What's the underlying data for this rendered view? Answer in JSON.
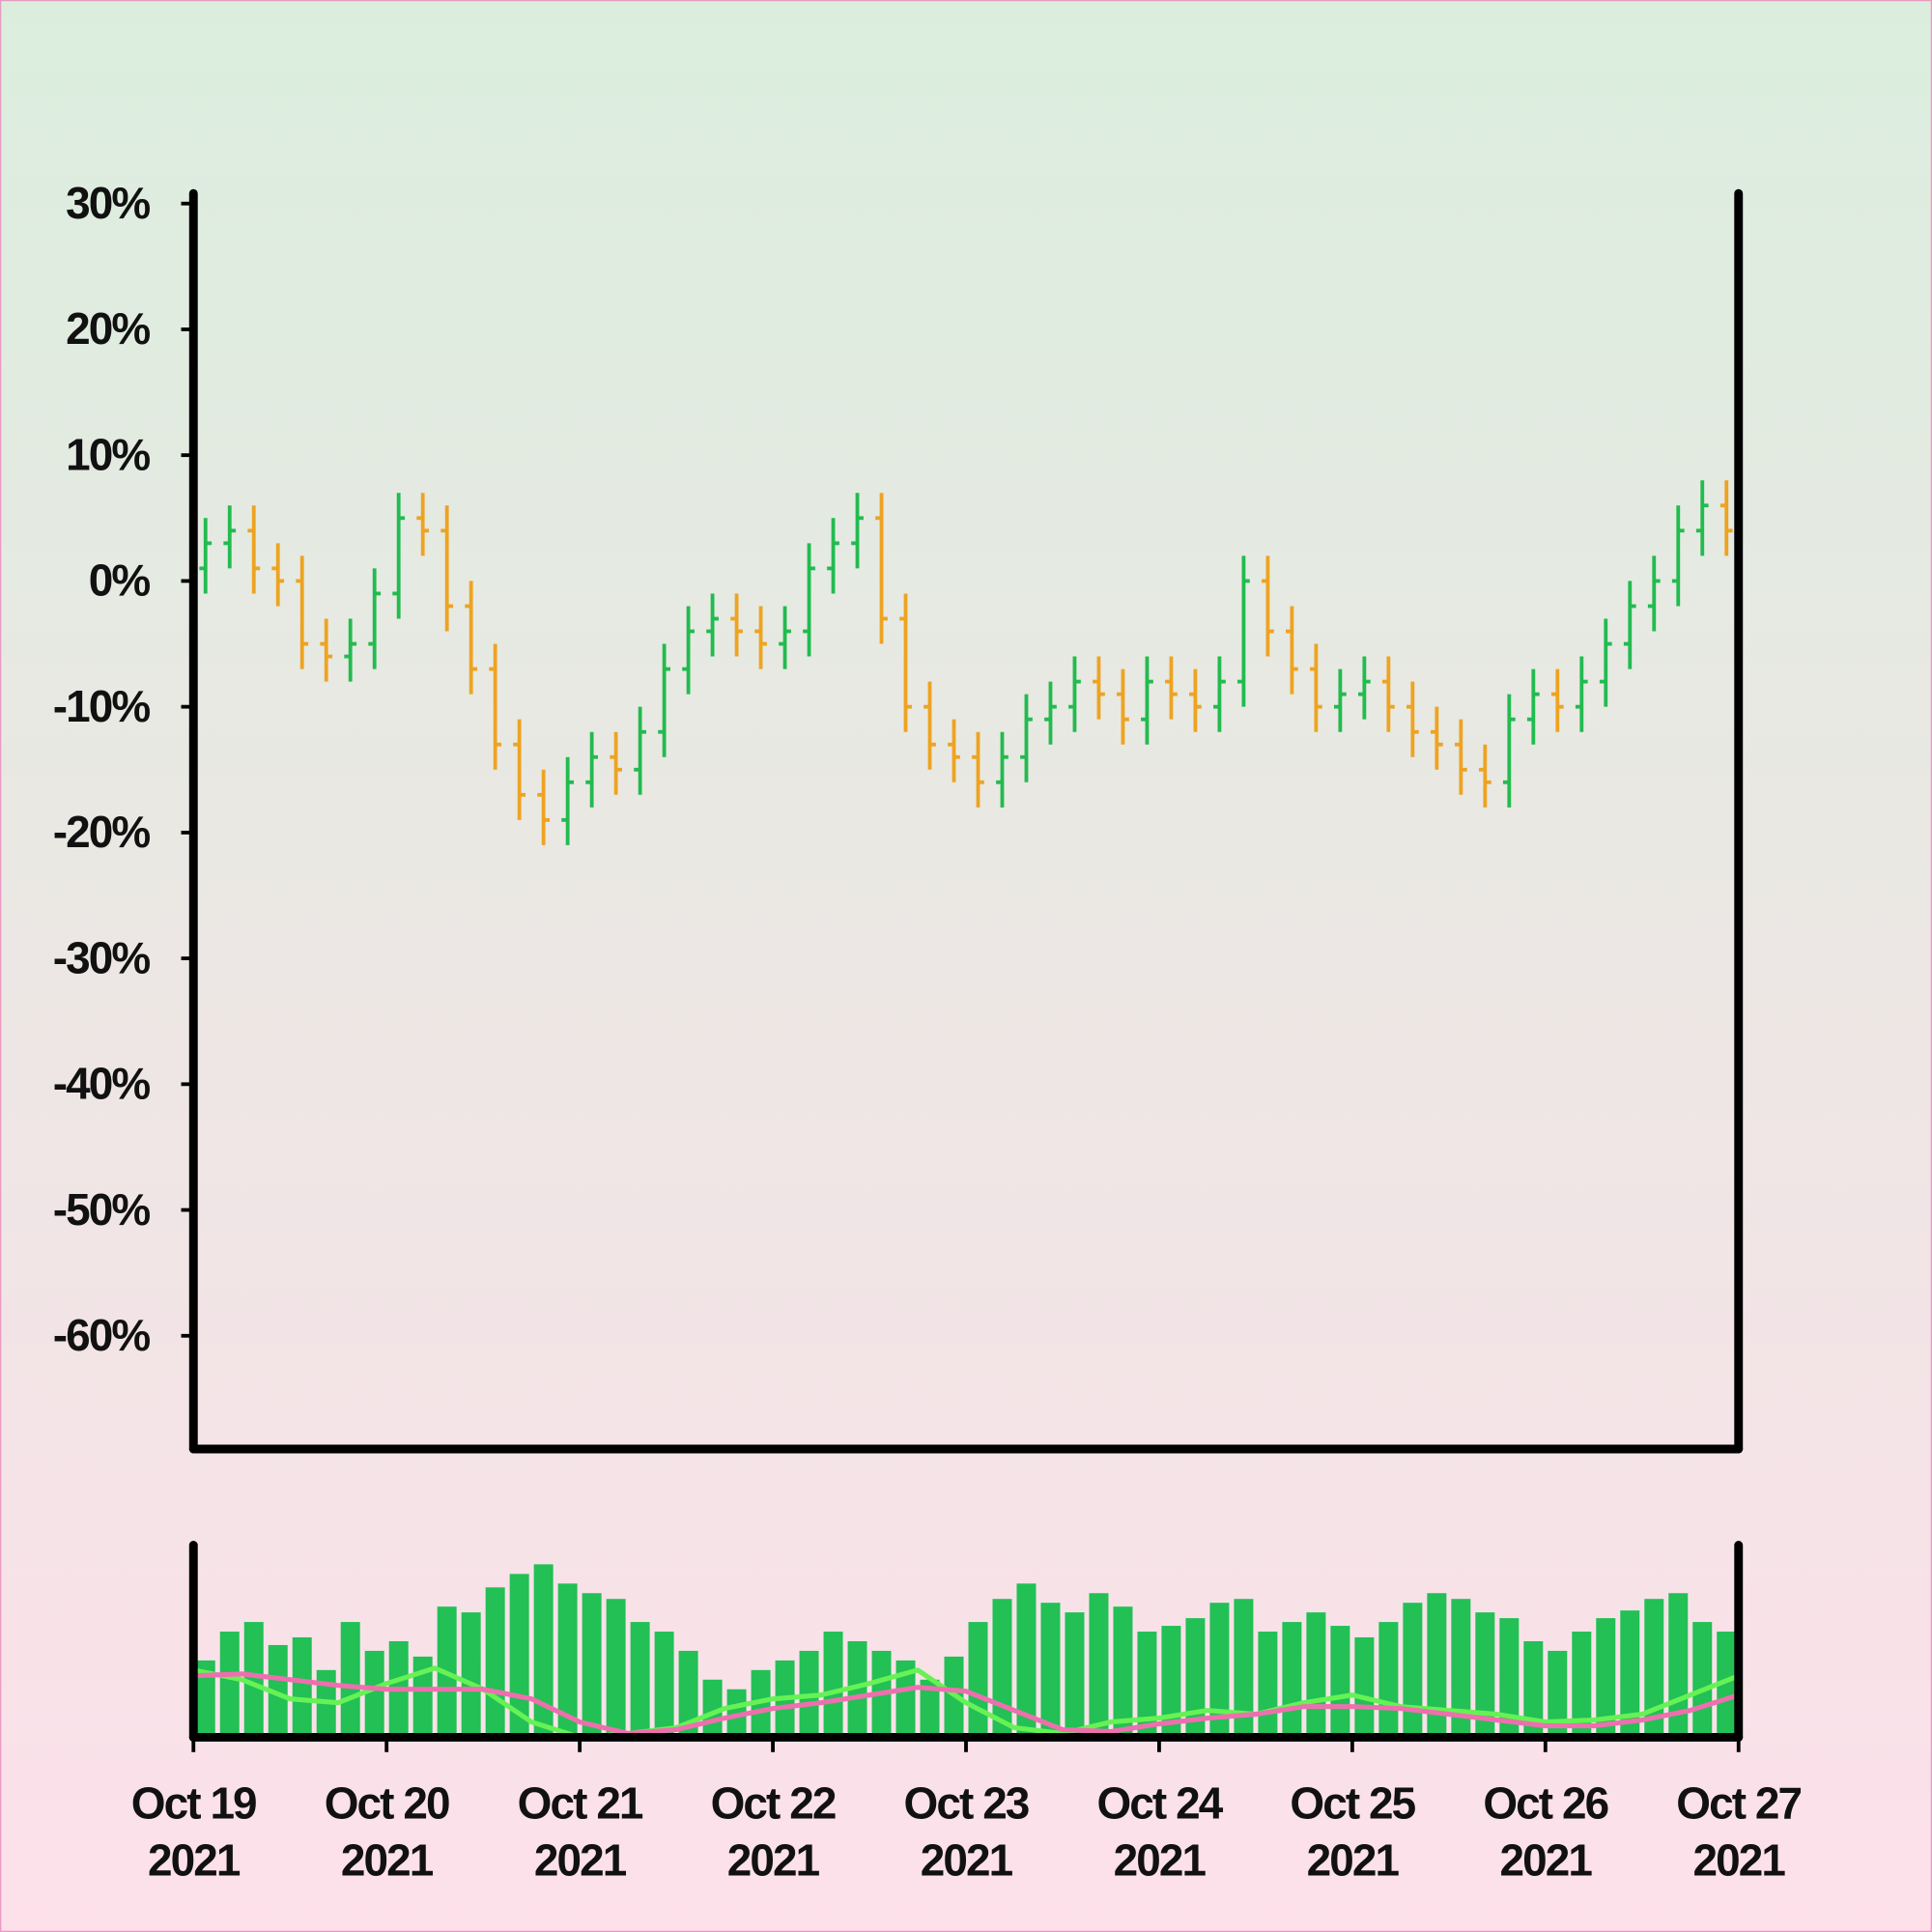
{
  "chart_data": {
    "type": "ohlc",
    "xlim": [
      0,
      8
    ],
    "xticks": [
      {
        "value": 0,
        "label": "Oct 19 2021"
      },
      {
        "value": 1,
        "label": "Oct 20 2021"
      },
      {
        "value": 2,
        "label": "Oct 21 2021"
      },
      {
        "value": 3,
        "label": "Oct 22 2021"
      },
      {
        "value": 4,
        "label": "Oct 23 2021"
      },
      {
        "value": 5,
        "label": "Oct 24 2021"
      },
      {
        "value": 6,
        "label": "Oct 25 2021"
      },
      {
        "value": 7,
        "label": "Oct 26 2021"
      },
      {
        "value": 8,
        "label": "Oct 27 2021"
      }
    ],
    "ylim": [
      -69,
      31
    ],
    "yticks": [
      {
        "value": 30,
        "label": "30%"
      },
      {
        "value": 20,
        "label": "20%"
      },
      {
        "value": 10,
        "label": "10%"
      },
      {
        "value": 0,
        "label": "0%"
      },
      {
        "value": -10,
        "label": "-10%"
      },
      {
        "value": -20,
        "label": "-20%"
      },
      {
        "value": -30,
        "label": "-30%"
      },
      {
        "value": -40,
        "label": "-40%"
      },
      {
        "value": -50,
        "label": "-50%"
      },
      {
        "value": -60,
        "label": "-60%"
      }
    ],
    "up_color": "#22bb4f",
    "down_color": "#eea321",
    "x": [
      0,
      0.125,
      0.25,
      0.375,
      0.5,
      0.625,
      0.75,
      0.875,
      1,
      1.125,
      1.25,
      1.375,
      1.5,
      1.625,
      1.75,
      1.875,
      2,
      2.125,
      2.25,
      2.375,
      2.5,
      2.625,
      2.75,
      2.875,
      3,
      3.125,
      3.25,
      3.375,
      3.5,
      3.625,
      3.75,
      3.875,
      4,
      4.125,
      4.25,
      4.375,
      4.5,
      4.625,
      4.75,
      4.875,
      5,
      5.125,
      5.25,
      5.375,
      5.5,
      5.625,
      5.75,
      5.875,
      6,
      6.125,
      6.25,
      6.375,
      6.5,
      6.625,
      6.75,
      6.875,
      7,
      7.125,
      7.25,
      7.375,
      7.5,
      7.625,
      7.75,
      7.875
    ],
    "open": [
      1,
      3,
      4,
      1,
      0,
      -5,
      -6,
      -5,
      -1,
      5,
      4,
      -2,
      -7,
      -13,
      -17,
      -19,
      -16,
      -14,
      -15,
      -12,
      -7,
      -4,
      -3,
      -4,
      -5,
      -4,
      1,
      3,
      5,
      -3,
      -10,
      -13,
      -14,
      -16,
      -14,
      -11,
      -10,
      -8,
      -9,
      -11,
      -8,
      -9,
      -10,
      -8,
      0,
      -4,
      -7,
      -10,
      -9,
      -8,
      -10,
      -12,
      -13,
      -15,
      -16,
      -11,
      -9,
      -10,
      -8,
      -5,
      -2,
      0,
      4,
      6
    ],
    "high": [
      5,
      6,
      6,
      3,
      2,
      -3,
      -3,
      1,
      7,
      7,
      6,
      0,
      -5,
      -11,
      -15,
      -14,
      -12,
      -12,
      -10,
      -5,
      -2,
      -1,
      -1,
      -2,
      -2,
      3,
      5,
      7,
      7,
      -1,
      -8,
      -11,
      -12,
      -12,
      -9,
      -8,
      -6,
      -6,
      -7,
      -6,
      -6,
      -7,
      -6,
      2,
      2,
      -2,
      -5,
      -7,
      -6,
      -6,
      -8,
      -10,
      -11,
      -13,
      -9,
      -7,
      -7,
      -6,
      -3,
      0,
      2,
      6,
      8,
      8
    ],
    "low": [
      -1,
      1,
      -1,
      -2,
      -7,
      -8,
      -8,
      -7,
      -3,
      2,
      -4,
      -9,
      -15,
      -19,
      -21,
      -21,
      -18,
      -17,
      -17,
      -14,
      -9,
      -6,
      -6,
      -7,
      -7,
      -6,
      -1,
      1,
      -5,
      -12,
      -15,
      -16,
      -18,
      -18,
      -16,
      -13,
      -12,
      -11,
      -13,
      -13,
      -11,
      -12,
      -12,
      -10,
      -6,
      -9,
      -12,
      -12,
      -11,
      -12,
      -14,
      -15,
      -17,
      -18,
      -18,
      -13,
      -12,
      -12,
      -10,
      -7,
      -4,
      -2,
      2,
      2
    ],
    "close": [
      3,
      4,
      1,
      0,
      -5,
      -6,
      -5,
      -1,
      5,
      4,
      -2,
      -7,
      -13,
      -17,
      -19,
      -16,
      -14,
      -15,
      -12,
      -7,
      -4,
      -3,
      -4,
      -5,
      -4,
      1,
      3,
      5,
      -3,
      -10,
      -13,
      -14,
      -16,
      -14,
      -11,
      -10,
      -8,
      -9,
      -11,
      -8,
      -9,
      -10,
      -8,
      0,
      -4,
      -7,
      -10,
      -9,
      -8,
      -10,
      -12,
      -13,
      -15,
      -16,
      -11,
      -9,
      -10,
      -8,
      -5,
      -2,
      0,
      4,
      6,
      4
    ],
    "volume": {
      "ylim": [
        0,
        100
      ],
      "color": "#22c055",
      "values": [
        40,
        55,
        60,
        48,
        52,
        35,
        60,
        45,
        50,
        42,
        68,
        65,
        78,
        85,
        90,
        80,
        75,
        72,
        60,
        55,
        45,
        30,
        25,
        35,
        40,
        45,
        55,
        50,
        45,
        40,
        30,
        42,
        60,
        72,
        80,
        70,
        65,
        75,
        68,
        55,
        58,
        62,
        70,
        72,
        55,
        60,
        65,
        58,
        52,
        60,
        70,
        75,
        72,
        65,
        62,
        50,
        45,
        55,
        62,
        66,
        72,
        75,
        60,
        55
      ],
      "lines": [
        {
          "color": "#66f255",
          "x": [
            0,
            0.25,
            0.5,
            0.75,
            1,
            1.25,
            1.5,
            1.75,
            2,
            2.25,
            2.5,
            2.75,
            3,
            3.25,
            3.5,
            3.75,
            4,
            4.25,
            4.5,
            4.75,
            5,
            5.25,
            5.5,
            5.75,
            6,
            6.25,
            6.5,
            6.75,
            7,
            7.25,
            7.5,
            7.75,
            8
          ],
          "values": [
            35,
            30,
            20,
            18,
            28,
            36,
            25,
            8,
            0,
            2,
            5,
            15,
            20,
            22,
            28,
            35,
            18,
            5,
            2,
            8,
            10,
            14,
            12,
            18,
            22,
            16,
            14,
            12,
            8,
            9,
            12,
            22,
            32
          ]
        },
        {
          "color": "#ee6fae",
          "x": [
            0,
            0.25,
            0.5,
            0.75,
            1,
            1.25,
            1.5,
            1.75,
            2,
            2.25,
            2.5,
            2.75,
            3,
            3.25,
            3.5,
            3.75,
            4,
            4.25,
            4.5,
            4.75,
            5,
            5.25,
            5.5,
            5.75,
            6,
            6.25,
            6.5,
            6.75,
            7,
            7.25,
            7.5,
            7.75,
            8
          ],
          "values": [
            32,
            33,
            30,
            27,
            25,
            25,
            25,
            20,
            8,
            2,
            4,
            10,
            15,
            18,
            22,
            26,
            24,
            14,
            4,
            3,
            7,
            10,
            12,
            16,
            16,
            15,
            12,
            9,
            6,
            6,
            9,
            14,
            22
          ]
        }
      ]
    }
  }
}
